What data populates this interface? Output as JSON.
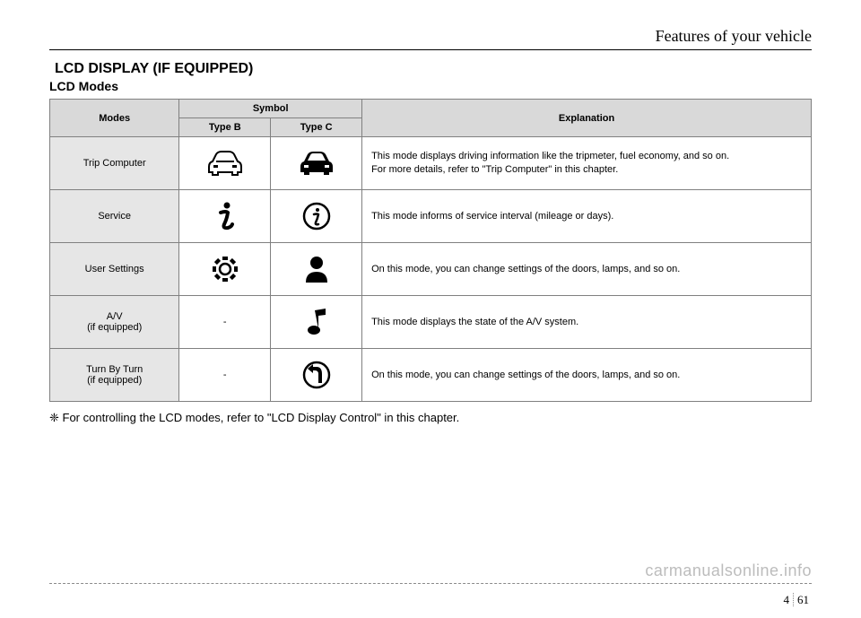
{
  "header": {
    "chapter": "Features of your vehicle"
  },
  "titles": {
    "main": "LCD DISPLAY (IF EQUIPPED)",
    "sub": "LCD Modes"
  },
  "table": {
    "head": {
      "modes": "Modes",
      "symbol": "Symbol",
      "typeB": "Type B",
      "typeC": "Type C",
      "explanation": "Explanation"
    },
    "rows": [
      {
        "mode": "Trip Computer",
        "typeB_dash": false,
        "explanation": "This mode displays driving information like the tripmeter, fuel economy, and so on.\nFor more details, refer to \"Trip Computer\" in this chapter."
      },
      {
        "mode": "Service",
        "typeB_dash": false,
        "explanation": "This mode informs of service interval (mileage or days)."
      },
      {
        "mode": "User Settings",
        "typeB_dash": false,
        "explanation": "On this mode, you can change settings of the doors, lamps, and so on."
      },
      {
        "mode": "A/V\n(if equipped)",
        "typeB_dash": true,
        "explanation": "This mode displays the state of the A/V system."
      },
      {
        "mode": "Turn By Turn\n(if equipped)",
        "typeB_dash": true,
        "explanation": "On this mode, you can change settings of the doors, lamps, and so on."
      }
    ]
  },
  "note": "❈ For controlling the LCD modes, refer to \"LCD Display Control\" in this chapter.",
  "footer": {
    "section": "4",
    "page": "61",
    "watermark": "carmanualsonline.info"
  },
  "style": {
    "icon_color": "#000000",
    "header_bg": "#d9d9d9",
    "mode_bg": "#e6e6e6",
    "border_color": "#808080"
  }
}
